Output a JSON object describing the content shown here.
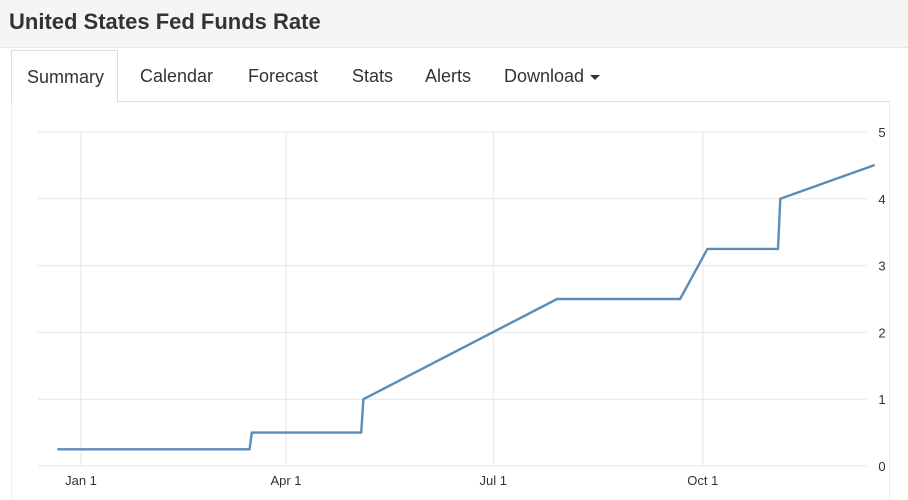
{
  "header": {
    "title": "United States Fed Funds Rate"
  },
  "tabs": [
    {
      "label": "Summary",
      "active": true
    },
    {
      "label": "Calendar"
    },
    {
      "label": "Forecast"
    },
    {
      "label": "Stats"
    },
    {
      "label": "Alerts"
    },
    {
      "label": "Download",
      "has_dropdown": true
    }
  ],
  "colors": {
    "line": "#5b8db8",
    "grid": "#e6e6e6",
    "title_bar": "#f5f5f5"
  },
  "chart_data": {
    "type": "line",
    "title": "",
    "xlabel": "",
    "ylabel": "",
    "x_tick_labels": [
      "Jan 1",
      "Apr 1",
      "Jul 1",
      "Oct 1"
    ],
    "y_tick_labels": [
      "0",
      "1",
      "2",
      "3",
      "4",
      "5"
    ],
    "ylim": [
      0,
      5
    ],
    "y_axis_side": "right",
    "grid": true,
    "series": [
      {
        "points": [
          {
            "x": "2022-12-22",
            "y": 0.25
          },
          {
            "x": "2023-03-16",
            "y": 0.25
          },
          {
            "x": "2023-03-17",
            "y": 0.5
          },
          {
            "x": "2023-05-04",
            "y": 0.5
          },
          {
            "x": "2023-05-05",
            "y": 1.0
          },
          {
            "x": "2023-07-29",
            "y": 2.5
          },
          {
            "x": "2023-09-21",
            "y": 2.5
          },
          {
            "x": "2023-10-03",
            "y": 3.25
          },
          {
            "x": "2023-11-03",
            "y": 3.25
          },
          {
            "x": "2023-11-04",
            "y": 4.0
          },
          {
            "x": "2023-12-15",
            "y": 4.5
          }
        ]
      }
    ]
  }
}
